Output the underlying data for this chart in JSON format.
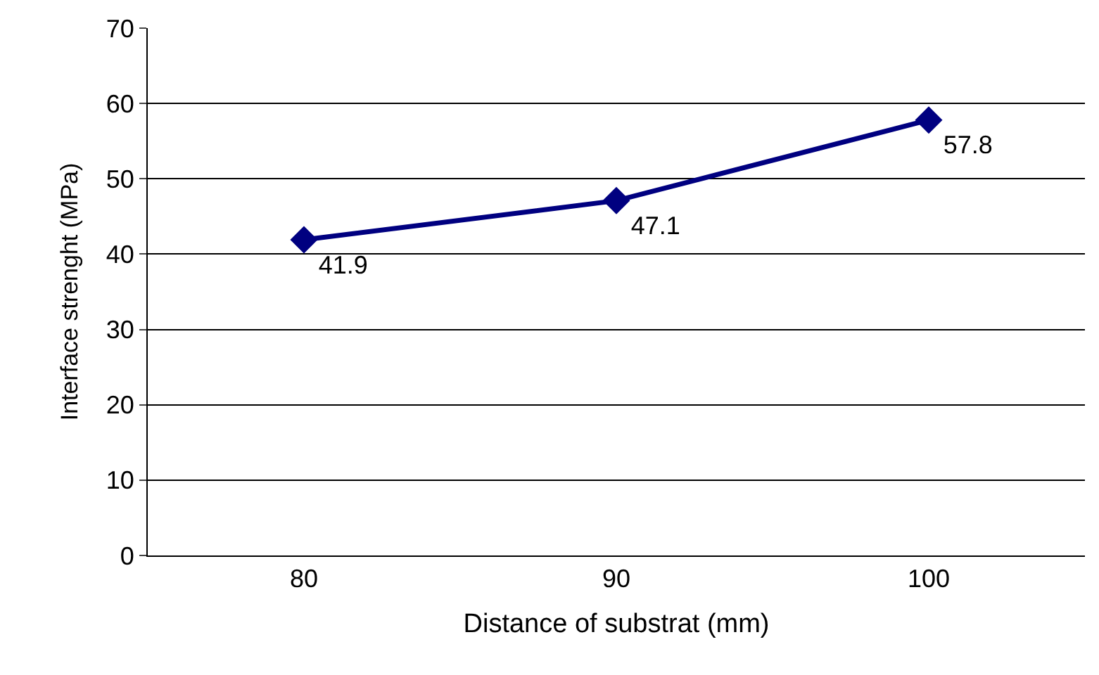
{
  "chart_data": {
    "type": "line",
    "xlabel": "Distance of substrat (mm)",
    "ylabel": "Interface strenght (MPa)",
    "categories": [
      "80",
      "90",
      "100"
    ],
    "series": [
      {
        "color": "#000080",
        "values": [
          41.9,
          47.1,
          57.8
        ]
      }
    ],
    "ylim": [
      0,
      70
    ],
    "yticks": [
      0,
      10,
      20,
      30,
      40,
      50,
      60,
      70
    ],
    "grid": "y",
    "legend": false,
    "marker": "diamond",
    "line_style": "solid",
    "data_labels": true
  }
}
